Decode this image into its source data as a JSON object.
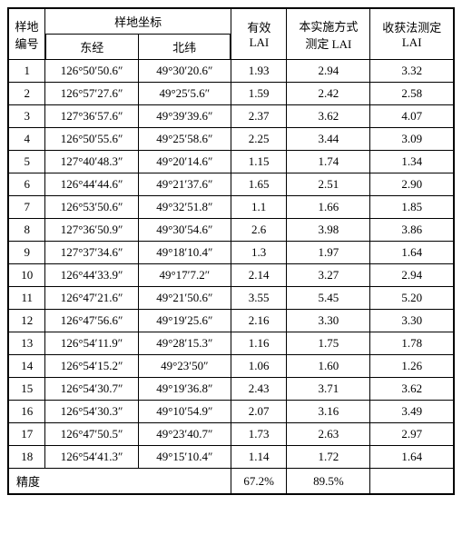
{
  "table": {
    "headers": {
      "plot_id_line1": "样地",
      "plot_id_line2": "编号",
      "coords": "样地坐标",
      "east": "东经",
      "north": "北纬",
      "effective_line1": "有效",
      "effective_line2": "LAI",
      "method_line1": "本实施方式",
      "method_line2": "测定 LAI",
      "harvest_line1": "收获法测定",
      "harvest_line2": "LAI"
    },
    "rows": [
      {
        "id": "1",
        "east": "126°50′50.6″",
        "north": "49°30′20.6″",
        "lai1": "1.93",
        "lai2": "2.94",
        "lai3": "3.32"
      },
      {
        "id": "2",
        "east": "126°57′27.6″",
        "north": "49°25′5.6″",
        "lai1": "1.59",
        "lai2": "2.42",
        "lai3": "2.58"
      },
      {
        "id": "3",
        "east": "127°36′57.6″",
        "north": "49°39′39.6″",
        "lai1": "2.37",
        "lai2": "3.62",
        "lai3": "4.07"
      },
      {
        "id": "4",
        "east": "126°50′55.6″",
        "north": "49°25′58.6″",
        "lai1": "2.25",
        "lai2": "3.44",
        "lai3": "3.09"
      },
      {
        "id": "5",
        "east": "127°40′48.3″",
        "north": "49°20′14.6″",
        "lai1": "1.15",
        "lai2": "1.74",
        "lai3": "1.34"
      },
      {
        "id": "6",
        "east": "126°44′44.6″",
        "north": "49°21′37.6″",
        "lai1": "1.65",
        "lai2": "2.51",
        "lai3": "2.90"
      },
      {
        "id": "7",
        "east": "126°53′50.6″",
        "north": "49°32′51.8″",
        "lai1": "1.1",
        "lai2": "1.66",
        "lai3": "1.85"
      },
      {
        "id": "8",
        "east": "127°36′50.9″",
        "north": "49°30′54.6″",
        "lai1": "2.6",
        "lai2": "3.98",
        "lai3": "3.86"
      },
      {
        "id": "9",
        "east": "127°37′34.6″",
        "north": "49°18′10.4″",
        "lai1": "1.3",
        "lai2": "1.97",
        "lai3": "1.64"
      },
      {
        "id": "10",
        "east": "126°44′33.9″",
        "north": "49°17′7.2″",
        "lai1": "2.14",
        "lai2": "3.27",
        "lai3": "2.94"
      },
      {
        "id": "11",
        "east": "126°47′21.6″",
        "north": "49°21′50.6″",
        "lai1": "3.55",
        "lai2": "5.45",
        "lai3": "5.20"
      },
      {
        "id": "12",
        "east": "126°47′56.6″",
        "north": "49°19′25.6″",
        "lai1": "2.16",
        "lai2": "3.30",
        "lai3": "3.30"
      },
      {
        "id": "13",
        "east": "126°54′11.9″",
        "north": "49°28′15.3″",
        "lai1": "1.16",
        "lai2": "1.75",
        "lai3": "1.78"
      },
      {
        "id": "14",
        "east": "126°54′15.2″",
        "north": "49°23′50″",
        "lai1": "1.06",
        "lai2": "1.60",
        "lai3": "1.26"
      },
      {
        "id": "15",
        "east": "126°54′30.7″",
        "north": "49°19′36.8″",
        "lai1": "2.43",
        "lai2": "3.71",
        "lai3": "3.62"
      },
      {
        "id": "16",
        "east": "126°54′30.3″",
        "north": "49°10′54.9″",
        "lai1": "2.07",
        "lai2": "3.16",
        "lai3": "3.49"
      },
      {
        "id": "17",
        "east": "126°47′50.5″",
        "north": "49°23′40.7″",
        "lai1": "1.73",
        "lai2": "2.63",
        "lai3": "2.97"
      },
      {
        "id": "18",
        "east": "126°54′41.3″",
        "north": "49°15′10.4″",
        "lai1": "1.14",
        "lai2": "1.72",
        "lai3": "1.64"
      }
    ],
    "footer": {
      "label": "精度",
      "val1": "67.2%",
      "val2": "89.5%"
    },
    "styling": {
      "border_color": "#000000",
      "background_color": "#ffffff",
      "text_color": "#000000",
      "font_size": 13,
      "outer_border_width": 2,
      "inner_border_width": 1,
      "font_family": "SimSun"
    }
  }
}
